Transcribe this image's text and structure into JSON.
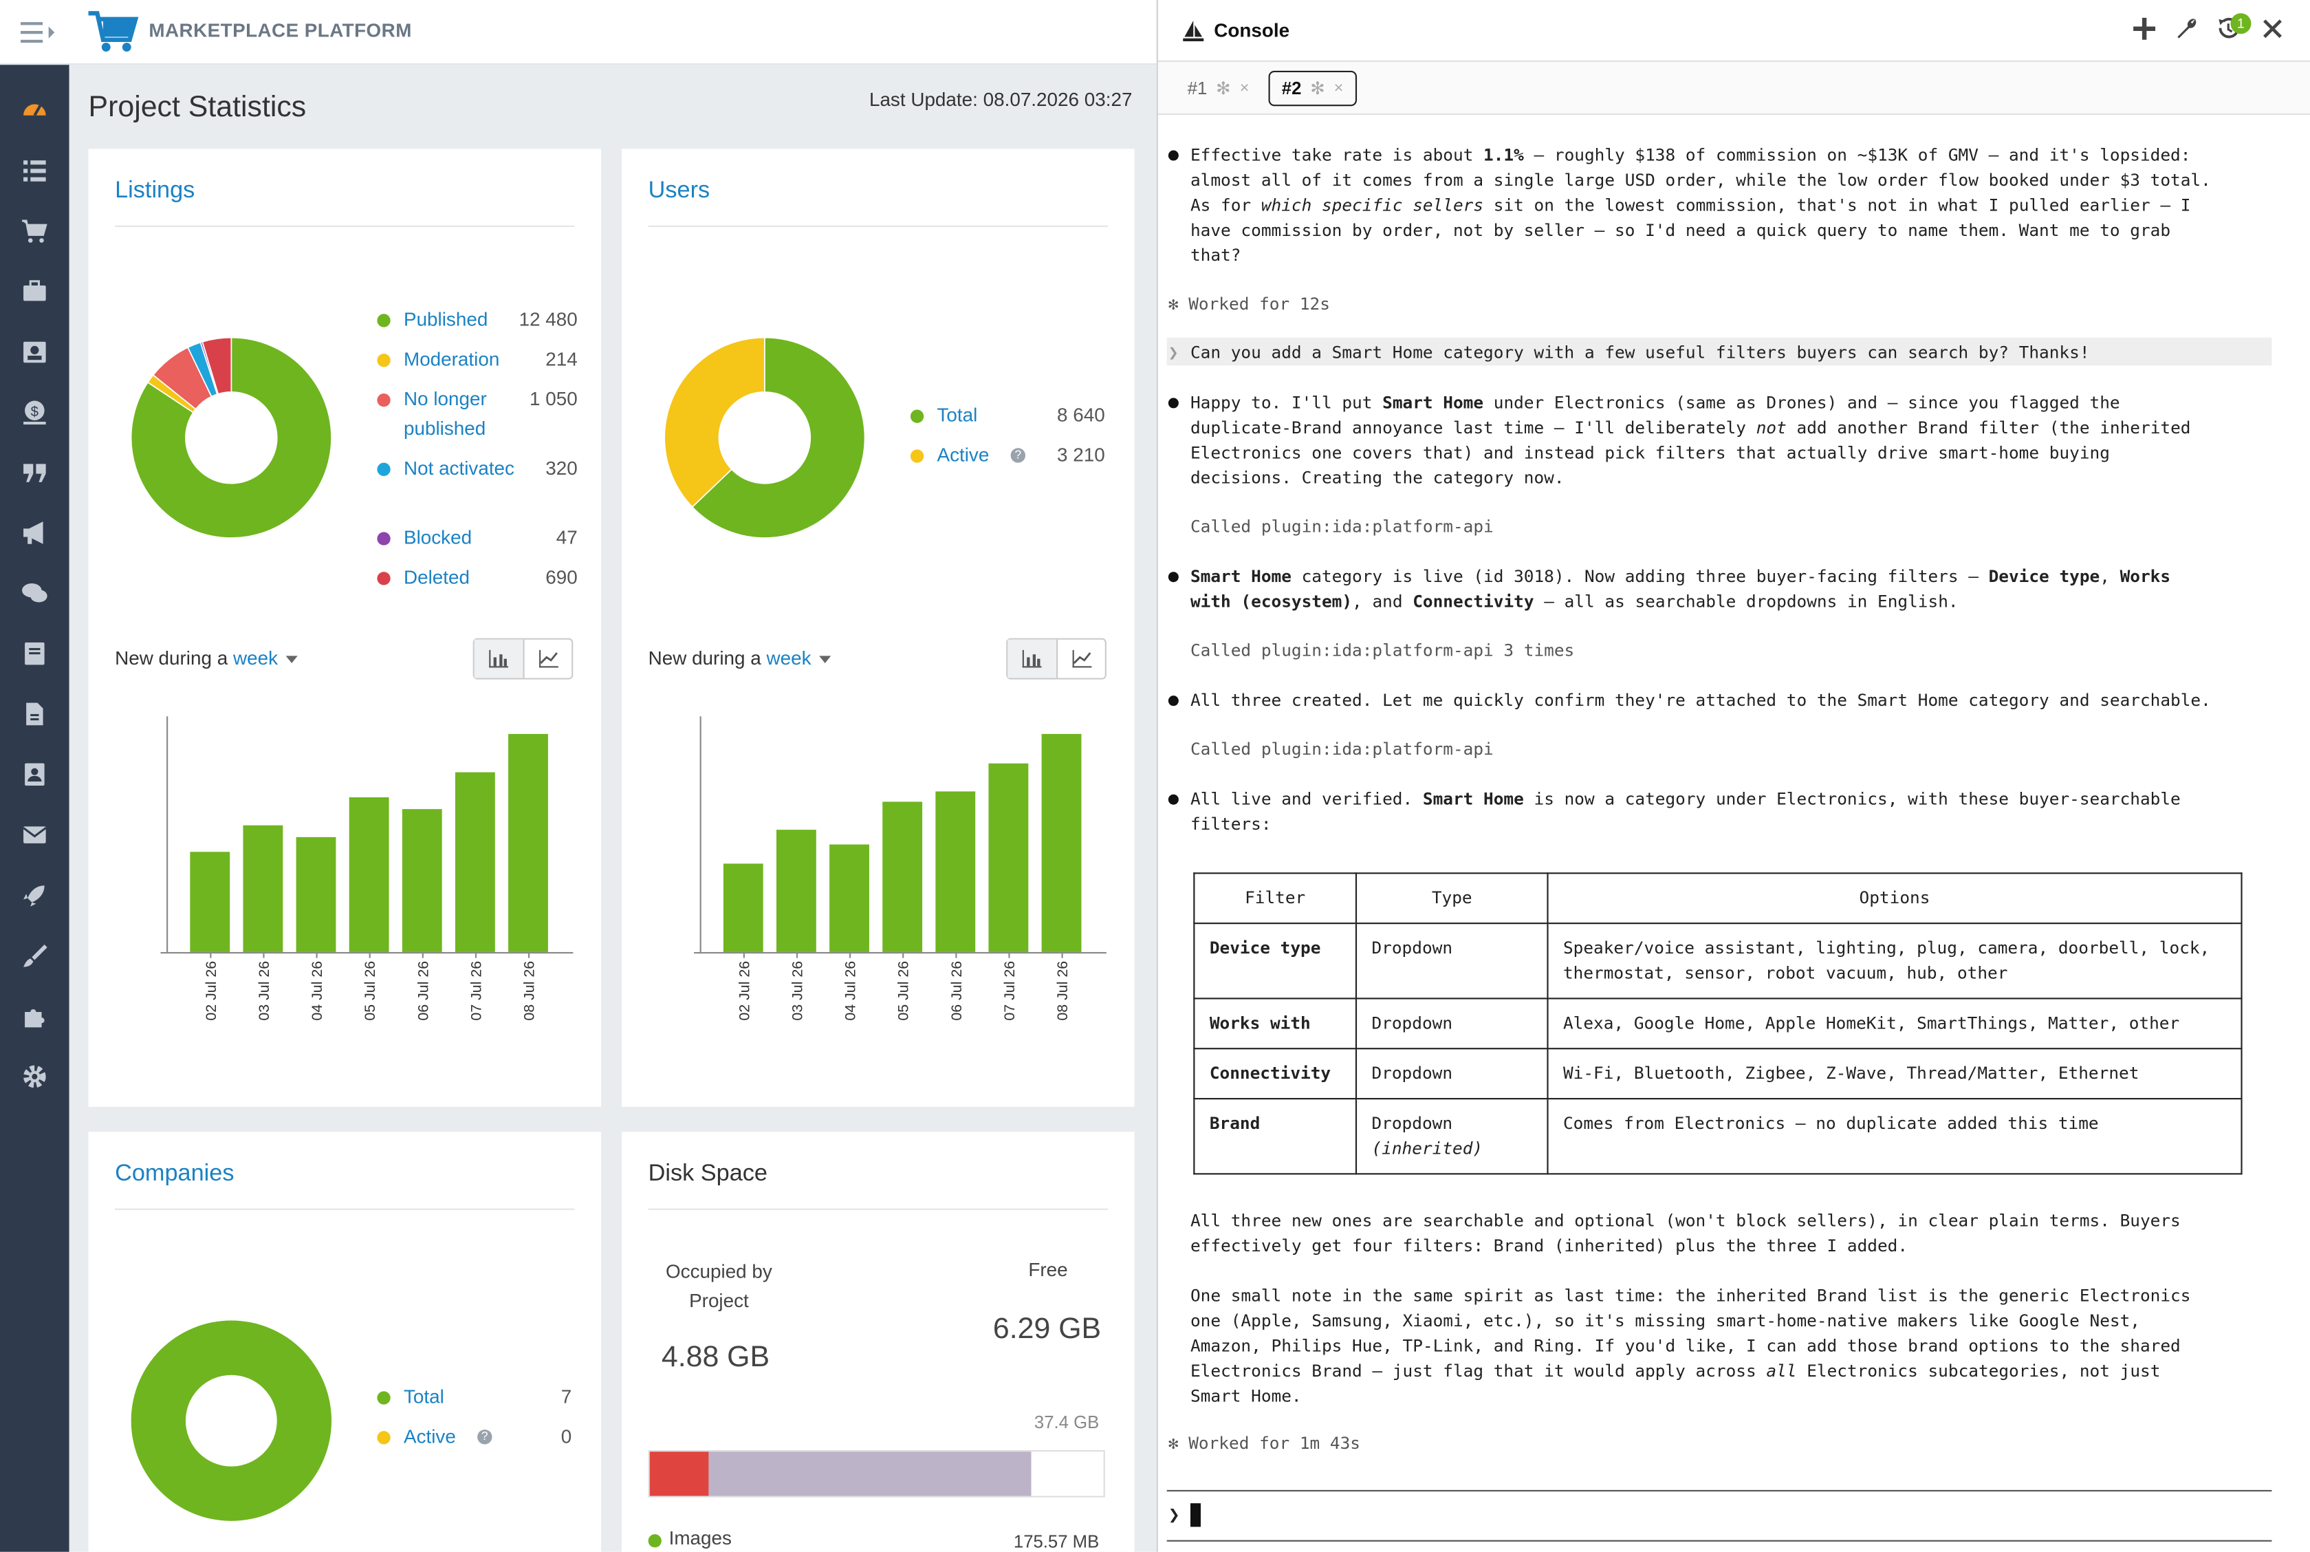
{
  "app": {
    "title": "MARKETPLACE PLATFORM"
  },
  "page": {
    "title": "Project Statistics",
    "last_update": "Last Update: 08.07.2026 03:27"
  },
  "sidebar": {
    "items": [
      "dashboard-icon",
      "list-icon",
      "cart-icon",
      "briefcase-icon",
      "id-card-icon",
      "money-icon",
      "quote-icon",
      "megaphone-icon",
      "chat-icon",
      "book-icon",
      "file-icon",
      "contact-icon",
      "mail-icon",
      "rocket-icon",
      "brush-icon",
      "puzzle-icon",
      "gear-icon"
    ]
  },
  "listings": {
    "title": "Listings",
    "legend": [
      {
        "label": "Published",
        "value": "12 480",
        "color": "#6fb51f"
      },
      {
        "label": "Moderation",
        "value": "214",
        "color": "#f5c518"
      },
      {
        "label": "No longer published",
        "value": "1 050",
        "color": "#e9605c"
      },
      {
        "label": "Not activatec",
        "value": "320",
        "color": "#1fa5dc"
      },
      {
        "label": "Blocked",
        "value": "47",
        "color": "#8e44ad"
      },
      {
        "label": "Deleted",
        "value": "690",
        "color": "#d9414a"
      }
    ],
    "new_during_label": "New during a",
    "period": "week",
    "chart_data": {
      "type": "bar",
      "categories": [
        "02 Jul 26",
        "03 Jul 26",
        "04 Jul 26",
        "05 Jul 26",
        "06 Jul 26",
        "07 Jul 26",
        "08 Jul 26"
      ],
      "values": [
        68,
        86,
        78,
        105,
        97,
        122,
        148
      ],
      "ylim": [
        0,
        160
      ],
      "color": "#6fb51f"
    }
  },
  "users": {
    "title": "Users",
    "legend": [
      {
        "label": "Total",
        "value": "8 640",
        "color": "#6fb51f"
      },
      {
        "label": "Active",
        "value": "3 210",
        "color": "#f5c518"
      }
    ],
    "new_during_label": "New during a",
    "period": "week",
    "chart_data": {
      "type": "bar",
      "categories": [
        "02 Jul 26",
        "03 Jul 26",
        "04 Jul 26",
        "05 Jul 26",
        "06 Jul 26",
        "07 Jul 26",
        "08 Jul 26"
      ],
      "values": [
        60,
        83,
        73,
        102,
        109,
        128,
        148
      ],
      "ylim": [
        0,
        160
      ],
      "color": "#6fb51f"
    }
  },
  "companies": {
    "title": "Companies",
    "legend": [
      {
        "label": "Total",
        "value": "7",
        "color": "#6fb51f"
      },
      {
        "label": "Active",
        "value": "0",
        "color": "#f5c518"
      }
    ]
  },
  "disk": {
    "title": "Disk Space",
    "occupied_label": "Occupied by Project",
    "occupied_value": "4.88 GB",
    "free_label": "Free",
    "free_value": "6.29 GB",
    "total": "37.4 GB",
    "images_label": "Images",
    "images_value": "175.57 MB",
    "bar_segments": [
      {
        "fraction": 0.13,
        "color": "#e0443f"
      },
      {
        "fraction": 0.71,
        "color": "#bcb3c8"
      },
      {
        "fraction": 0.16,
        "color": "#ffffff"
      }
    ]
  },
  "console": {
    "title": "Console",
    "badge": "1",
    "tabs": [
      {
        "label": "#1"
      },
      {
        "label": "#2"
      }
    ],
    "worked1": "Worked for 12s",
    "user_prompt": "Can you add a Smart Home category with a few useful filters buyers can search by? Thanks!",
    "called1": "Called plugin:ida:platform-api",
    "called2": "Called plugin:ida:platform-api 3 times",
    "msg3": "All three created. Let me quickly confirm they're attached to the Smart Home category and searchable.",
    "called3": "Called plugin:ida:platform-api",
    "table": {
      "headers": [
        "Filter",
        "Type",
        "Options"
      ],
      "rows": [
        [
          "Device type",
          "Dropdown",
          "Speaker/voice assistant, lighting, plug, camera, doorbell, lock, thermostat, sensor, robot vacuum, hub, other"
        ],
        [
          "Works with",
          "Dropdown",
          "Alexa, Google Home, Apple HomeKit, SmartThings, Matter, other"
        ],
        [
          "Connectivity",
          "Dropdown",
          "Wi-Fi, Bluetooth, Zigbee, Z-Wave, Thread/Matter, Ethernet"
        ],
        [
          "Brand",
          "Dropdown",
          "Comes from Electronics — no duplicate added this time"
        ]
      ],
      "inherited": "(inherited)"
    },
    "worked2": "Worked for 1m 43s",
    "input_prompt": "❯"
  }
}
